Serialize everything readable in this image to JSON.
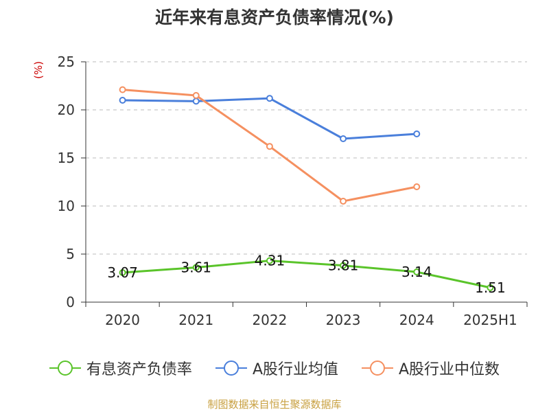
{
  "chart_data": {
    "type": "line",
    "title": "近年来有息资产负债率情况(%)",
    "ylabel": "(%)",
    "categories": [
      "2020",
      "2021",
      "2022",
      "2023",
      "2024",
      "2025H1"
    ],
    "ylim": [
      0,
      25
    ],
    "yticks": [
      0,
      5,
      10,
      15,
      20,
      25
    ],
    "series": [
      {
        "name": "有息资产负债率",
        "color": "#5ac42a",
        "values": [
          3.07,
          3.61,
          4.31,
          3.81,
          3.14,
          1.51
        ],
        "labels": [
          "3.07",
          "3.61",
          "4.31",
          "3.81",
          "3.14",
          "1.51"
        ]
      },
      {
        "name": "A股行业均值",
        "color": "#4a7fdb",
        "values": [
          21.0,
          20.9,
          21.2,
          17.0,
          17.5,
          null
        ]
      },
      {
        "name": "A股行业中位数",
        "color": "#f59060",
        "values": [
          22.1,
          21.5,
          16.2,
          10.5,
          12.0,
          null
        ]
      }
    ],
    "legend_position": "bottom",
    "grid": true
  },
  "footer": {
    "source": "制图数据来自恒生聚源数据库"
  }
}
